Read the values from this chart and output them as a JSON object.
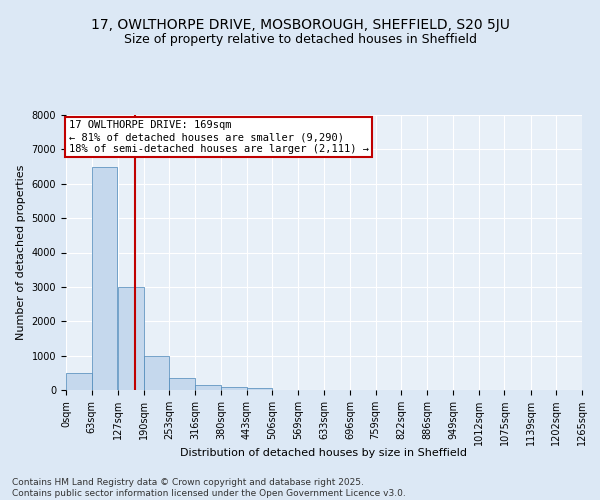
{
  "title1": "17, OWLTHORPE DRIVE, MOSBOROUGH, SHEFFIELD, S20 5JU",
  "title2": "Size of property relative to detached houses in Sheffield",
  "xlabel": "Distribution of detached houses by size in Sheffield",
  "ylabel": "Number of detached properties",
  "bins": [
    0,
    63,
    127,
    190,
    253,
    316,
    380,
    443,
    506,
    569,
    633,
    696,
    759,
    822,
    886,
    949,
    1012,
    1075,
    1139,
    1202,
    1265
  ],
  "bin_labels": [
    "0sqm",
    "63sqm",
    "127sqm",
    "190sqm",
    "253sqm",
    "316sqm",
    "380sqm",
    "443sqm",
    "506sqm",
    "569sqm",
    "633sqm",
    "696sqm",
    "759sqm",
    "822sqm",
    "886sqm",
    "949sqm",
    "1012sqm",
    "1075sqm",
    "1139sqm",
    "1202sqm",
    "1265sqm"
  ],
  "bar_heights": [
    500,
    6500,
    3000,
    1000,
    350,
    150,
    80,
    50,
    0,
    0,
    0,
    0,
    0,
    0,
    0,
    0,
    0,
    0,
    0,
    0
  ],
  "bar_color": "#c5d8ed",
  "bar_edge_color": "#4a86b8",
  "vline_x": 169,
  "vline_color": "#c00000",
  "ylim": [
    0,
    8000
  ],
  "yticks": [
    0,
    1000,
    2000,
    3000,
    4000,
    5000,
    6000,
    7000,
    8000
  ],
  "annotation_title": "17 OWLTHORPE DRIVE: 169sqm",
  "annotation_line1": "← 81% of detached houses are smaller (9,290)",
  "annotation_line2": "18% of semi-detached houses are larger (2,111) →",
  "annotation_box_color": "#c00000",
  "bg_color": "#dce8f5",
  "plot_bg_color": "#e8f0f8",
  "grid_color": "#ffffff",
  "footer1": "Contains HM Land Registry data © Crown copyright and database right 2025.",
  "footer2": "Contains public sector information licensed under the Open Government Licence v3.0.",
  "title_fontsize": 10,
  "subtitle_fontsize": 9,
  "label_fontsize": 8,
  "tick_fontsize": 7,
  "annotation_fontsize": 7.5,
  "footer_fontsize": 6.5
}
